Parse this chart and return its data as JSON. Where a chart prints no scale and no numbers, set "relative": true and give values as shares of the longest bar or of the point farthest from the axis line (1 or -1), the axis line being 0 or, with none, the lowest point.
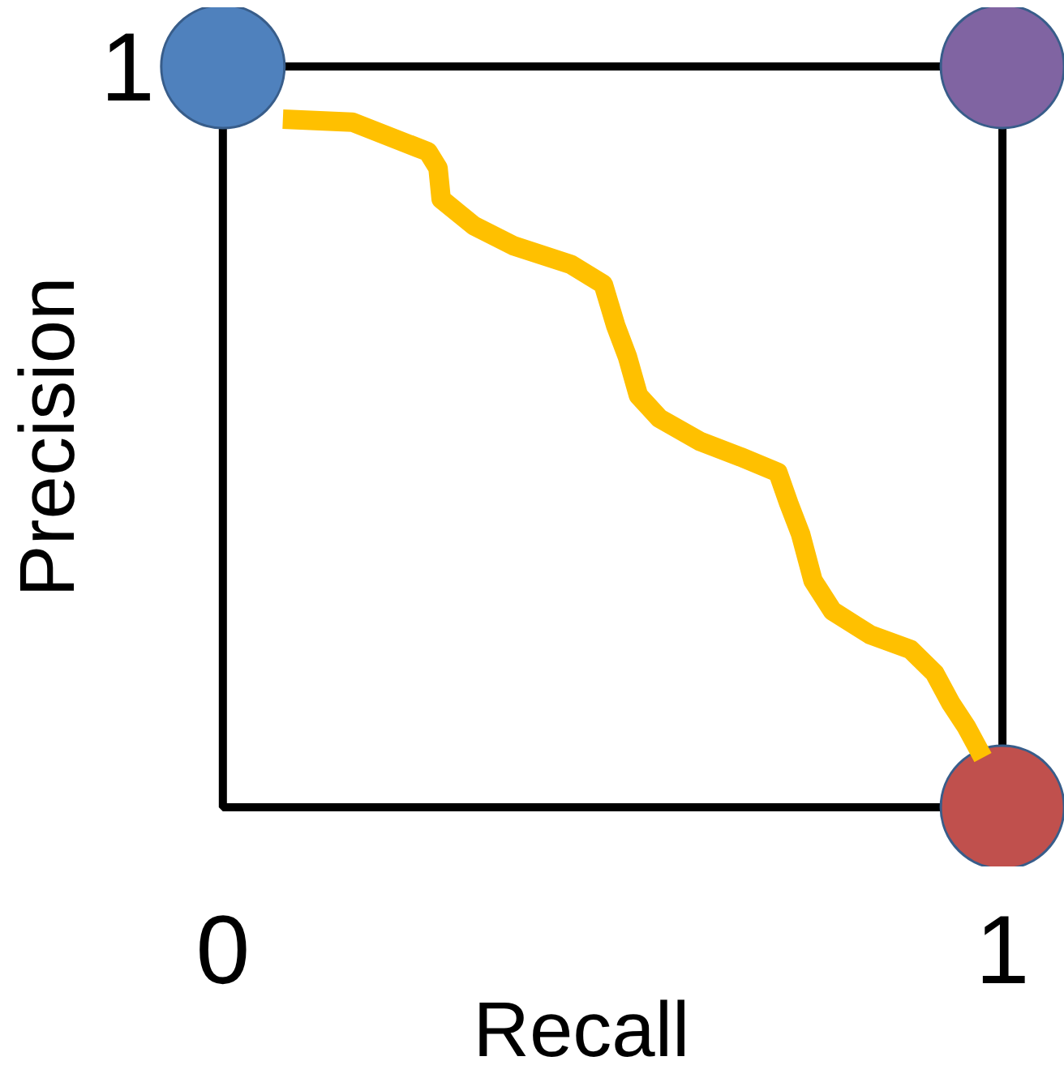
{
  "chart_data": {
    "type": "line",
    "xlabel": "Recall",
    "ylabel": "Precision",
    "xlim": [
      0,
      1
    ],
    "xticks": [
      0,
      1
    ],
    "relative": true,
    "annotations": [
      "1"
    ],
    "series": [
      {
        "type": "line",
        "color": "#ffc000",
        "x": [
          0.077,
          0.166,
          0.263,
          0.276,
          0.28,
          0.322,
          0.373,
          0.446,
          0.488,
          0.504,
          0.519,
          0.533,
          0.56,
          0.612,
          0.664,
          0.712,
          0.726,
          0.741,
          0.757,
          0.782,
          0.83,
          0.882,
          0.913,
          0.934,
          0.954,
          0.975
        ],
        "values": [
          0.929,
          0.925,
          0.885,
          0.863,
          0.821,
          0.785,
          0.758,
          0.733,
          0.706,
          0.65,
          0.608,
          0.556,
          0.525,
          0.494,
          0.473,
          0.452,
          0.41,
          0.369,
          0.306,
          0.265,
          0.233,
          0.213,
          0.181,
          0.14,
          0.108,
          0.067
        ]
      },
      {
        "type": "scatter",
        "marker": "circle",
        "x": [
          0,
          1,
          1
        ],
        "values": [
          1,
          1,
          0
        ],
        "colors": [
          "#4f81bd",
          "#8064a2",
          "#c0504d"
        ]
      }
    ]
  }
}
